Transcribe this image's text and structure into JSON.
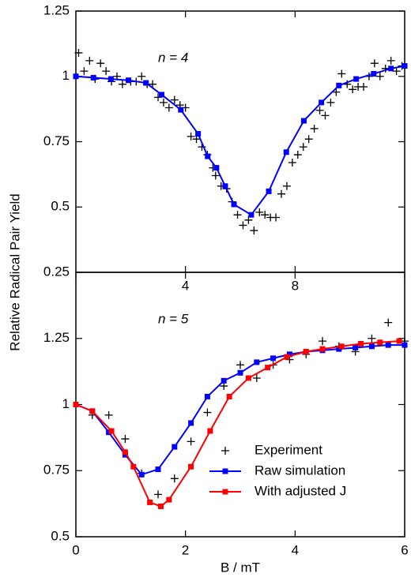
{
  "chart_data": [
    {
      "type": "line",
      "annotation": "n = 4",
      "ylabel": "Relative Radical Pair Yield",
      "xlim": [
        0,
        12
      ],
      "xticks": [
        4,
        8
      ],
      "ylim": [
        0.25,
        1.25
      ],
      "yticks": [
        0.25,
        0.5,
        0.75,
        1,
        1.25
      ],
      "series": [
        {
          "color": "#000000",
          "marker": "plus",
          "line": false,
          "x": [
            0.1,
            0.3,
            0.5,
            0.7,
            0.9,
            1.1,
            1.3,
            1.5,
            1.7,
            2.0,
            2.2,
            2.4,
            2.6,
            2.8,
            3.0,
            3.2,
            3.4,
            3.6,
            3.8,
            4.0,
            4.2,
            4.4,
            4.6,
            4.8,
            5.0,
            5.1,
            5.3,
            5.5,
            5.7,
            5.9,
            6.1,
            6.3,
            6.5,
            6.7,
            6.9,
            7.1,
            7.3,
            7.5,
            7.7,
            7.9,
            8.1,
            8.3,
            8.5,
            8.7,
            8.9,
            9.1,
            9.3,
            9.5,
            9.7,
            9.9,
            10.1,
            10.3,
            10.5,
            10.7,
            10.9,
            11.1,
            11.3,
            11.5,
            11.7,
            11.9
          ],
          "values": [
            1.09,
            1.02,
            1.06,
            0.99,
            1.05,
            1.02,
            0.98,
            1.0,
            0.97,
            0.98,
            0.98,
            1.0,
            0.97,
            0.97,
            0.92,
            0.9,
            0.88,
            0.91,
            0.89,
            0.88,
            0.77,
            0.76,
            0.73,
            0.7,
            0.65,
            0.62,
            0.58,
            0.57,
            0.52,
            0.47,
            0.43,
            0.45,
            0.41,
            0.48,
            0.47,
            0.46,
            0.46,
            0.55,
            0.58,
            0.67,
            0.7,
            0.73,
            0.76,
            0.8,
            0.87,
            0.85,
            0.9,
            0.94,
            1.01,
            0.97,
            0.95,
            0.96,
            0.96,
            1.0,
            1.05,
            1.0,
            1.03,
            1.06,
            1.02,
            1.04
          ]
        },
        {
          "color": "#0000ff",
          "marker": "square",
          "line": true,
          "x": [
            0,
            0.64,
            1.28,
            1.92,
            2.56,
            3.13,
            3.83,
            4.46,
            4.81,
            5.13,
            5.45,
            5.77,
            6.4,
            7.04,
            7.68,
            8.32,
            8.96,
            9.6,
            10.23,
            10.87,
            11.5,
            12
          ],
          "values": [
            1.0,
            0.995,
            0.99,
            0.985,
            0.975,
            0.93,
            0.872,
            0.78,
            0.694,
            0.65,
            0.58,
            0.51,
            0.47,
            0.56,
            0.71,
            0.83,
            0.9,
            0.965,
            0.99,
            1.01,
            1.03,
            1.04
          ]
        }
      ]
    },
    {
      "type": "line",
      "annotation": "n = 5",
      "xlabel": "B / mT",
      "xlim": [
        0,
        6
      ],
      "xticks": [
        0,
        2,
        4,
        6
      ],
      "ylim": [
        0.5,
        1.5
      ],
      "yticks": [
        0.5,
        0.75,
        1,
        1.25
      ],
      "series": [
        {
          "name": "Experiment",
          "color": "#000000",
          "marker": "plus",
          "line": false,
          "x": [
            0.3,
            0.6,
            0.9,
            1.2,
            1.5,
            1.8,
            2.1,
            2.4,
            2.7,
            3.0,
            3.3,
            3.6,
            3.9,
            4.2,
            4.5,
            4.8,
            5.1,
            5.4,
            5.7,
            6.0
          ],
          "values": [
            0.96,
            0.96,
            0.87,
            0.74,
            0.66,
            0.72,
            0.86,
            0.97,
            1.07,
            1.15,
            1.1,
            1.15,
            1.17,
            1.19,
            1.24,
            1.22,
            1.2,
            1.25,
            1.31,
            1.24
          ]
        },
        {
          "name": "Raw simulation",
          "color": "#0000ff",
          "marker": "square",
          "line": true,
          "x": [
            0,
            0.3,
            0.6,
            0.9,
            1.2,
            1.5,
            1.8,
            2.1,
            2.4,
            2.7,
            3.0,
            3.3,
            3.6,
            3.9,
            4.2,
            4.5,
            4.8,
            5.1,
            5.4,
            5.7,
            6.0
          ],
          "values": [
            1.0,
            0.975,
            0.895,
            0.81,
            0.735,
            0.755,
            0.84,
            0.93,
            1.03,
            1.09,
            1.12,
            1.16,
            1.175,
            1.19,
            1.2,
            1.205,
            1.21,
            1.215,
            1.22,
            1.225,
            1.225
          ]
        },
        {
          "name": "With adjusted J",
          "color": "#ff0000",
          "marker": "square",
          "line": true,
          "x": [
            0,
            0.3,
            0.65,
            0.9,
            1.05,
            1.35,
            1.55,
            1.7,
            2.1,
            2.45,
            2.8,
            3.15,
            3.5,
            3.85,
            4.2,
            4.5,
            4.85,
            5.2,
            5.55,
            5.9
          ],
          "values": [
            1.0,
            0.975,
            0.9,
            0.82,
            0.765,
            0.63,
            0.615,
            0.64,
            0.765,
            0.9,
            1.03,
            1.1,
            1.14,
            1.18,
            1.2,
            1.21,
            1.22,
            1.23,
            1.235,
            1.24
          ]
        }
      ]
    }
  ]
}
